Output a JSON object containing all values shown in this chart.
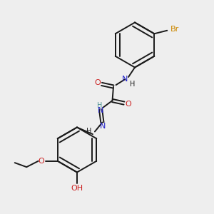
{
  "bg_color": "#eeeeee",
  "bond_color": "#1a1a1a",
  "N_color": "#2222cc",
  "N_color2": "#4a9090",
  "O_color": "#cc2222",
  "Br_color": "#cc8800",
  "figsize": [
    3.0,
    3.0
  ],
  "dpi": 100,
  "xlim": [
    0,
    10
  ],
  "ylim": [
    0,
    10
  ]
}
